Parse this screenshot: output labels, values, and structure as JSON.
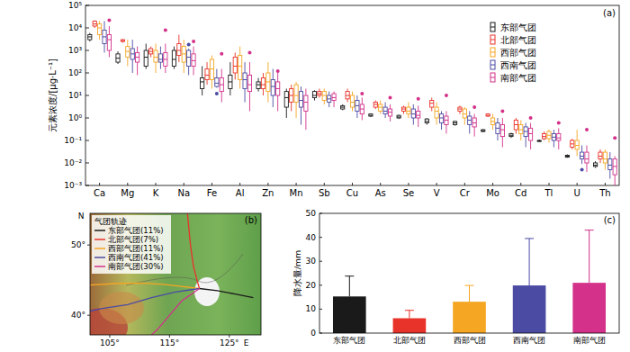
{
  "chart_data": [
    {
      "type": "box",
      "panel": "(a)",
      "y_label": "元素浓度/[μg·L⁻¹]",
      "log": "y",
      "legend": "upper right",
      "grid": false,
      "categories": [
        "Ca",
        "Mg",
        "K",
        "Na",
        "Fe",
        "Al",
        "Zn",
        "Mn",
        "Sb",
        "Cu",
        "As",
        "Se",
        "V",
        "Cr",
        "Mo",
        "Cd",
        "Tl",
        "U",
        "Th"
      ],
      "ylim": [
        0.001,
        100000
      ],
      "yticks": [
        {
          "value": 0.001,
          "label": "10⁻³"
        },
        {
          "value": 0.01,
          "label": "10⁻²"
        },
        {
          "value": 0.1,
          "label": "10⁻¹"
        },
        {
          "value": 1,
          "label": "10⁰"
        },
        {
          "value": 10,
          "label": "10¹"
        },
        {
          "value": 100,
          "label": "10²"
        },
        {
          "value": 1000,
          "label": "10³"
        },
        {
          "value": 10000,
          "label": "10⁴"
        },
        {
          "value": 100000,
          "label": "10⁵"
        }
      ],
      "series": [
        {
          "name": "东部气团",
          "color": "#1a1a1a",
          "min": [
            2500,
            250,
            150,
            150,
            10,
            10,
            15,
            1,
            6,
            2.2,
            1.1,
            0.9,
            0.5,
            0.45,
            0.23,
            0.13,
            0.085,
            0.017,
            0.006
          ],
          "q1": [
            3000,
            300,
            200,
            200,
            20,
            20,
            20,
            3,
            8,
            2.5,
            1.2,
            1,
            0.6,
            0.5,
            0.25,
            0.15,
            0.09,
            0.018,
            0.007
          ],
          "median": [
            4000,
            450,
            500,
            400,
            40,
            40,
            30,
            8,
            10,
            3,
            1.3,
            1.1,
            0.7,
            0.6,
            0.27,
            0.17,
            0.095,
            0.02,
            0.008
          ],
          "q3": [
            5000,
            700,
            1000,
            1000,
            60,
            80,
            40,
            15,
            15,
            3.5,
            1.5,
            1.3,
            0.9,
            0.7,
            0.3,
            0.2,
            0.1,
            0.022,
            0.01
          ],
          "max": [
            6000,
            900,
            2000,
            1500,
            200,
            300,
            60,
            20,
            17,
            4,
            1.6,
            1.4,
            1,
            0.75,
            0.32,
            0.22,
            0.11,
            0.024,
            0.012
          ],
          "outliers": [
            [],
            [],
            [],
            [],
            [],
            [],
            [],
            [],
            [],
            [],
            [],
            [],
            [],
            [],
            [],
            [],
            [],
            [],
            []
          ]
        },
        {
          "name": "北部气团",
          "color": "#e8332a",
          "min": [
            10000,
            2200,
            500,
            300,
            30,
            50,
            10,
            2,
            8,
            5,
            2.5,
            1.5,
            2,
            1.5,
            1.1,
            0.2,
            0.1,
            0.04,
            0.01
          ],
          "q1": [
            12000,
            2500,
            700,
            600,
            50,
            100,
            20,
            5,
            10,
            7,
            3,
            2,
            3,
            2,
            1.2,
            0.3,
            0.12,
            0.05,
            0.015
          ],
          "median": [
            15000,
            2700,
            900,
            1000,
            80,
            200,
            30,
            10,
            12,
            10,
            4,
            2.5,
            4.5,
            2.5,
            1.3,
            0.5,
            0.15,
            0.07,
            0.02
          ],
          "q3": [
            20000,
            3000,
            1200,
            2000,
            150,
            500,
            60,
            20,
            15,
            15,
            5,
            3,
            6,
            3,
            1.5,
            0.8,
            0.2,
            0.1,
            0.03
          ],
          "max": [
            22000,
            3200,
            1500,
            5000,
            300,
            800,
            100,
            30,
            20,
            20,
            6,
            3.5,
            8,
            3.5,
            1.6,
            1,
            0.25,
            0.12,
            0.04
          ],
          "outliers": [
            [],
            [],
            [],
            [],
            [],
            [],
            [],
            [],
            [],
            [],
            [],
            [],
            [],
            [],
            [],
            [],
            [],
            [],
            []
          ]
        },
        {
          "name": "西部气团",
          "color": "#f5a623",
          "min": [
            3000,
            200,
            100,
            100,
            20,
            20,
            5,
            1,
            4,
            2,
            1.5,
            1,
            0.5,
            0.5,
            0.3,
            0.1,
            0.08,
            0.02,
            0.005
          ],
          "q1": [
            5000,
            500,
            300,
            300,
            50,
            50,
            15,
            5,
            6,
            3,
            2,
            1.5,
            1,
            1,
            0.5,
            0.2,
            0.12,
            0.04,
            0.01
          ],
          "median": [
            10000,
            900,
            500,
            700,
            150,
            200,
            40,
            10,
            10,
            5,
            3,
            2,
            2,
            1.5,
            0.7,
            0.3,
            0.17,
            0.06,
            0.015
          ],
          "q3": [
            15000,
            1500,
            1000,
            1500,
            400,
            600,
            100,
            30,
            15,
            10,
            4,
            3,
            3,
            2.5,
            1,
            0.5,
            0.25,
            0.1,
            0.03
          ],
          "max": [
            20000,
            3000,
            2000,
            3000,
            600,
            1500,
            300,
            40,
            20,
            15,
            6,
            5,
            5,
            3,
            1.5,
            0.8,
            0.3,
            0.3,
            0.04
          ],
          "outliers": [
            [],
            [],
            [],
            [],
            [],
            [],
            [],
            [],
            [],
            [],
            [],
            [],
            [],
            [],
            [],
            [],
            [],
            [],
            []
          ]
        },
        {
          "name": "西南气团",
          "color": "#4b4ba3",
          "min": [
            800,
            100,
            150,
            80,
            22,
            5,
            3,
            0.5,
            3,
            1,
            1,
            0.5,
            0.3,
            0.2,
            0.1,
            0.05,
            0.05,
            0.009,
            0.002
          ],
          "q1": [
            2000,
            400,
            300,
            200,
            25,
            20,
            10,
            3,
            5,
            2,
            1.5,
            1,
            0.6,
            0.5,
            0.2,
            0.15,
            0.1,
            0.015,
            0.005
          ],
          "median": [
            4000,
            700,
            400,
            500,
            35,
            50,
            25,
            6,
            7,
            3.5,
            2,
            1.5,
            1,
            0.8,
            0.35,
            0.25,
            0.14,
            0.02,
            0.008
          ],
          "q3": [
            8000,
            1200,
            700,
            1000,
            60,
            100,
            50,
            15,
            10,
            6,
            3,
            2.5,
            1.5,
            1.2,
            0.6,
            0.4,
            0.2,
            0.03,
            0.015
          ],
          "max": [
            20000,
            3000,
            1500,
            1200,
            150,
            300,
            150,
            25,
            15,
            10,
            5,
            4,
            2,
            2,
            1,
            0.6,
            0.3,
            0.06,
            0.03
          ],
          "outliers": [
            [],
            [],
            [],
            [
              1800
            ],
            [
              12
            ],
            [],
            [],
            [],
            [],
            [],
            [],
            [],
            [],
            [],
            [],
            [],
            [],
            [
              0.005
            ],
            []
          ]
        },
        {
          "name": "南部气团",
          "color": "#d3318a",
          "min": [
            500,
            80,
            100,
            80,
            5,
            2,
            2,
            0.3,
            3,
            0.8,
            0.7,
            0.4,
            0.2,
            0.15,
            0.05,
            0.04,
            0.04,
            0.004,
            0.001
          ],
          "q1": [
            1000,
            300,
            200,
            200,
            15,
            15,
            10,
            2,
            6,
            1.5,
            1.2,
            1,
            0.5,
            0.4,
            0.15,
            0.1,
            0.1,
            0.01,
            0.003
          ],
          "median": [
            3000,
            500,
            400,
            350,
            30,
            30,
            20,
            5,
            8,
            2.5,
            1.8,
            1.3,
            0.8,
            0.6,
            0.3,
            0.2,
            0.13,
            0.015,
            0.007
          ],
          "q3": [
            5000,
            800,
            800,
            700,
            60,
            80,
            40,
            10,
            12,
            4,
            2.5,
            2,
            1.2,
            1,
            0.5,
            0.35,
            0.2,
            0.03,
            0.015
          ],
          "max": [
            12000,
            1500,
            2000,
            1500,
            150,
            300,
            100,
            20,
            15,
            8,
            4,
            3.5,
            2,
            1.5,
            1,
            0.6,
            0.35,
            0.06,
            0.02
          ],
          "outliers": [
            [
              22000
            ],
            [],
            [
              8000
            ],
            [
              2500
            ],
            [
              700
            ],
            [
              800
            ],
            [
              120
            ],
            [],
            [],
            [
              12
            ],
            [
              8
            ],
            [
              7
            ],
            [
              10
            ],
            [
              3
            ],
            [
              2
            ],
            [
              1
            ],
            [
              0.6
            ],
            [
              0.3
            ],
            [
              0.13
            ]
          ]
        }
      ]
    },
    {
      "type": "map",
      "panel": "(b)",
      "legend_title": "气团轨迹",
      "x_label": "E",
      "y_label": "N",
      "legend": "upper left",
      "xlim": [
        101.7,
        130.3
      ],
      "ylim": [
        37.2,
        54.5
      ],
      "xticks": [
        {
          "value": 105,
          "label": "105°"
        },
        {
          "value": 115,
          "label": "115°"
        },
        {
          "value": 125,
          "label": "125°"
        }
      ],
      "yticks": [
        {
          "value": 40,
          "label": "40°"
        },
        {
          "value": 50,
          "label": "50°"
        }
      ],
      "series": [
        {
          "name": "东部气团(11%)",
          "color": "#1a1a1a",
          "x": [
            129,
            126,
            123,
            120
          ],
          "y": [
            42.5,
            43,
            43.5,
            43.8
          ]
        },
        {
          "name": "北部气团(7%)",
          "color": "#e8332a",
          "x": [
            118,
            118.5,
            119,
            119.6,
            120
          ],
          "y": [
            54.5,
            50,
            47,
            45,
            43.8
          ]
        },
        {
          "name": "西部气团(11%)",
          "color": "#f5a623",
          "x": [
            101.7,
            106,
            110,
            114,
            117,
            120
          ],
          "y": [
            44.3,
            44.5,
            44.6,
            44.4,
            44.1,
            43.8
          ]
        },
        {
          "name": "西南气团(41%)",
          "color": "#4b4ba3",
          "x": [
            101.7,
            104,
            108,
            112,
            116,
            120
          ],
          "y": [
            40.6,
            41,
            41.5,
            42.5,
            43.3,
            43.8
          ]
        },
        {
          "name": "南部气团(30%)",
          "color": "#d3318a",
          "x": [
            112,
            113,
            115,
            117,
            120
          ],
          "y": [
            37.2,
            38,
            40,
            42,
            43.8
          ]
        }
      ]
    },
    {
      "type": "bar",
      "panel": "(c)",
      "y_label": "降水量/mm",
      "grid": false,
      "categories": [
        "东部气团",
        "北部气团",
        "西部气团",
        "西南气团",
        "南部气团"
      ],
      "values": [
        15.3,
        6.2,
        13.1,
        19.9,
        21.0
      ],
      "errors": [
        8.5,
        3.3,
        6.8,
        19.6,
        22.0
      ],
      "colors": [
        "#1a1a1a",
        "#e8332a",
        "#f5a623",
        "#4b4ba3",
        "#d3318a"
      ],
      "ylim": [
        0,
        50
      ],
      "yticks": [
        0,
        10,
        20,
        30,
        40,
        50
      ]
    }
  ]
}
